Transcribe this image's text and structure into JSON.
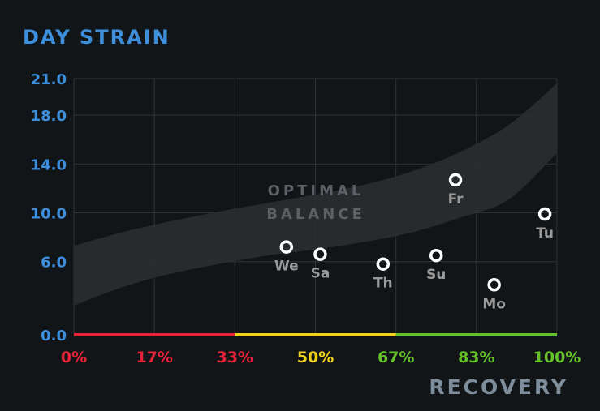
{
  "colors": {
    "background": "#121518",
    "accent_blue": "#3d8fdc",
    "recovery_title": "#7d8d9b",
    "grid": "#2e3338",
    "band": "#2a2d31",
    "band_text": "#5d6166",
    "point_label": "#9a9a9a",
    "red": "#e8223a",
    "yellow": "#f0d21c",
    "green": "#64c228"
  },
  "chart_data": {
    "type": "scatter",
    "title": "",
    "ylabel": "DAY STRAIN",
    "xlabel": "RECOVERY",
    "xlim": [
      0,
      100
    ],
    "ylim": [
      0,
      21
    ],
    "x_ticks": [
      {
        "value": 0,
        "label": "0%",
        "color": "#e8223a"
      },
      {
        "value": 16.67,
        "label": "17%",
        "color": "#e8223a"
      },
      {
        "value": 33.33,
        "label": "33%",
        "color": "#e8223a"
      },
      {
        "value": 50,
        "label": "50%",
        "color": "#f0d21c"
      },
      {
        "value": 66.67,
        "label": "67%",
        "color": "#64c228"
      },
      {
        "value": 83.33,
        "label": "83%",
        "color": "#64c228"
      },
      {
        "value": 100,
        "label": "100%",
        "color": "#64c228"
      }
    ],
    "y_ticks": [
      {
        "value": 0,
        "label": "0.0"
      },
      {
        "value": 6,
        "label": "6.0"
      },
      {
        "value": 10,
        "label": "10.0"
      },
      {
        "value": 14,
        "label": "14.0"
      },
      {
        "value": 18,
        "label": "18.0"
      },
      {
        "value": 21,
        "label": "21.0"
      }
    ],
    "recovery_zones": [
      {
        "from": 0,
        "to": 33.33,
        "color": "#e8223a"
      },
      {
        "from": 33.33,
        "to": 66.67,
        "color": "#f0d21c"
      },
      {
        "from": 66.67,
        "to": 100,
        "color": "#64c228"
      }
    ],
    "optimal_band": {
      "label_lines": [
        "OPTIMAL",
        "BALANCE"
      ],
      "x": [
        0,
        10,
        20,
        30,
        40,
        50,
        60,
        70,
        80,
        90,
        100
      ],
      "upper": [
        7.3,
        8.4,
        9.3,
        10.1,
        10.8,
        11.5,
        12.3,
        13.4,
        15.0,
        17.2,
        20.6
      ],
      "lower": [
        2.4,
        3.9,
        5.0,
        5.8,
        6.5,
        7.0,
        7.6,
        8.4,
        9.6,
        11.1,
        14.9
      ]
    },
    "points": [
      {
        "label": "Mo",
        "x": 87,
        "y": 4.1
      },
      {
        "label": "Tu",
        "x": 97.5,
        "y": 9.9
      },
      {
        "label": "We",
        "x": 44,
        "y": 7.2
      },
      {
        "label": "Th",
        "x": 64,
        "y": 5.8
      },
      {
        "label": "Fr",
        "x": 79,
        "y": 12.7
      },
      {
        "label": "Sa",
        "x": 51,
        "y": 6.6
      },
      {
        "label": "Su",
        "x": 75,
        "y": 6.5
      }
    ]
  }
}
